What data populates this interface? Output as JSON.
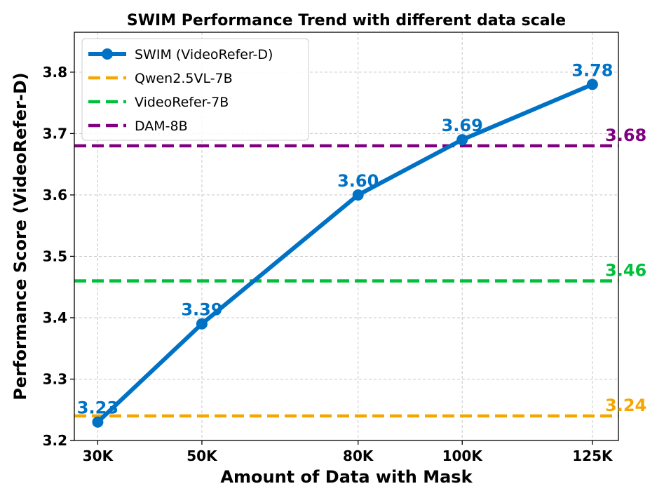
{
  "chart_data": {
    "type": "line",
    "title": "SWIM Performance Trend with different data scale",
    "xlabel": "Amount of Data with Mask",
    "ylabel": "Performance Score (VideoRefer-D)",
    "x": [
      30,
      50,
      80,
      100,
      125
    ],
    "x_tick_labels": [
      "30K",
      "50K",
      "80K",
      "100K",
      "125K"
    ],
    "xlim": [
      25.5,
      130
    ],
    "ylim": [
      3.2,
      3.865
    ],
    "y_ticks": [
      3.2,
      3.3,
      3.4,
      3.5,
      3.6,
      3.7,
      3.8
    ],
    "y_tick_labels": [
      "3.2",
      "3.3",
      "3.4",
      "3.5",
      "3.6",
      "3.7",
      "3.8"
    ],
    "grid": true,
    "legend_position": "top-left",
    "series": [
      {
        "name": "SWIM (VideoRefer-D)",
        "values": [
          3.23,
          3.39,
          3.6,
          3.69,
          3.78
        ],
        "value_labels": [
          "3.23",
          "3.39",
          "3.60",
          "3.69",
          "3.78"
        ],
        "color": "#0072c6",
        "style": "solid-with-markers"
      }
    ],
    "baselines": [
      {
        "name": "Qwen2.5VL-7B",
        "value": 3.24,
        "value_label": "3.24",
        "color": "#f5a700"
      },
      {
        "name": "VideoRefer-7B",
        "value": 3.46,
        "value_label": "3.46",
        "color": "#00c03b"
      },
      {
        "name": "DAM-8B",
        "value": 3.68,
        "value_label": "3.68",
        "color": "#800080"
      }
    ]
  }
}
